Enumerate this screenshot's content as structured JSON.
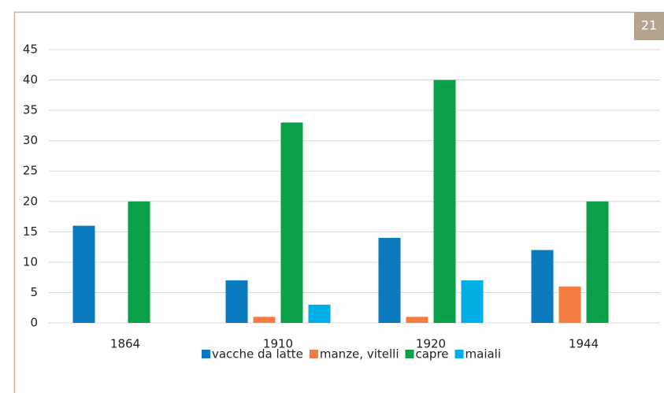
{
  "chart_data": {
    "type": "bar",
    "annotation": "21",
    "categories": [
      "1864",
      "1910",
      "1920",
      "1944"
    ],
    "series": [
      {
        "name": "vacche da latte",
        "color": "#0a7abf",
        "values": [
          16,
          7,
          14,
          12
        ]
      },
      {
        "name": "manze, vitelli",
        "color": "#f47b42",
        "values": [
          0,
          1,
          1,
          6
        ]
      },
      {
        "name": "capre",
        "color": "#0aa04a",
        "values": [
          20,
          33,
          40,
          20
        ]
      },
      {
        "name": "maiali",
        "color": "#00aee6",
        "values": [
          0,
          3,
          7,
          0
        ]
      }
    ],
    "ylim": [
      0,
      45
    ],
    "yticks": [
      0,
      5,
      10,
      15,
      20,
      25,
      30,
      35,
      40,
      45
    ],
    "grid": true,
    "legend": "bottom"
  }
}
